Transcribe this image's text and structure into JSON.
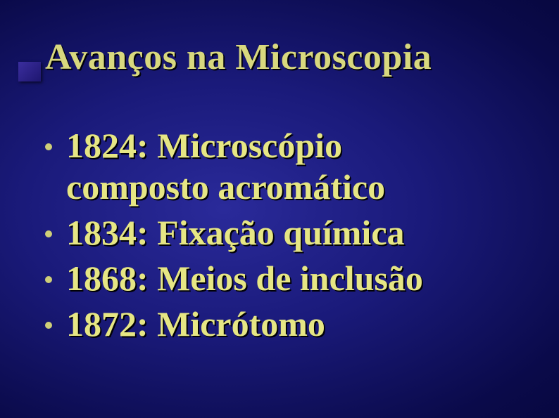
{
  "title": "Avanços na Microscopia",
  "title_color": "#d8d87e",
  "title_fontsize": 52,
  "bullet_color": "#cfcf78",
  "body_color": "#e6e684",
  "body_fontsize": 50,
  "background_gradient": {
    "inner": "#2a2a9a",
    "mid": "#1a1a7a",
    "outer": "#020225"
  },
  "items": [
    {
      "text": "1824: Microscópio\ncomposto acromático"
    },
    {
      "text": "1834: Fixação química"
    },
    {
      "text": "1868: Meios de inclusão"
    },
    {
      "text": "1872: Micrótomo"
    }
  ]
}
